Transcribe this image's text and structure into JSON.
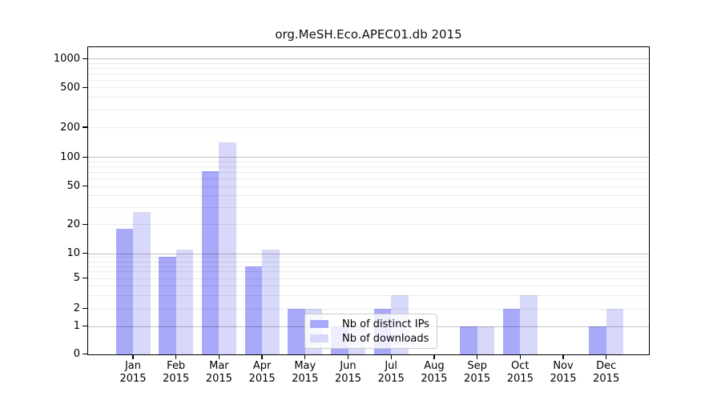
{
  "title": "org.MeSH.Eco.APEC01.db 2015",
  "chart_data": {
    "type": "bar",
    "title": "org.MeSH.Eco.APEC01.db 2015",
    "categories": [
      "Jan 2015",
      "Feb 2015",
      "Mar 2015",
      "Apr 2015",
      "May 2015",
      "Jun 2015",
      "Jul 2015",
      "Aug 2015",
      "Sep 2015",
      "Oct 2015",
      "Nov 2015",
      "Dec 2015"
    ],
    "series": [
      {
        "name": "Nb of distinct IPs",
        "color": "#a9a9fa",
        "values": [
          18,
          9,
          72,
          7,
          2,
          1,
          2,
          0,
          1,
          2,
          0,
          1
        ]
      },
      {
        "name": "Nb of downloads",
        "color": "#d8d8fa",
        "values": [
          27,
          11,
          140,
          11,
          2,
          1,
          3,
          0,
          1,
          3,
          0,
          2
        ]
      }
    ],
    "xlabel": "",
    "ylabel": "",
    "yscale": "log",
    "ylim": [
      0,
      1000
    ],
    "yticks": [
      1000,
      500,
      200,
      100,
      50,
      20,
      10,
      5,
      2,
      1,
      0
    ],
    "grid": "horizontal",
    "legend_position": "lower center"
  }
}
